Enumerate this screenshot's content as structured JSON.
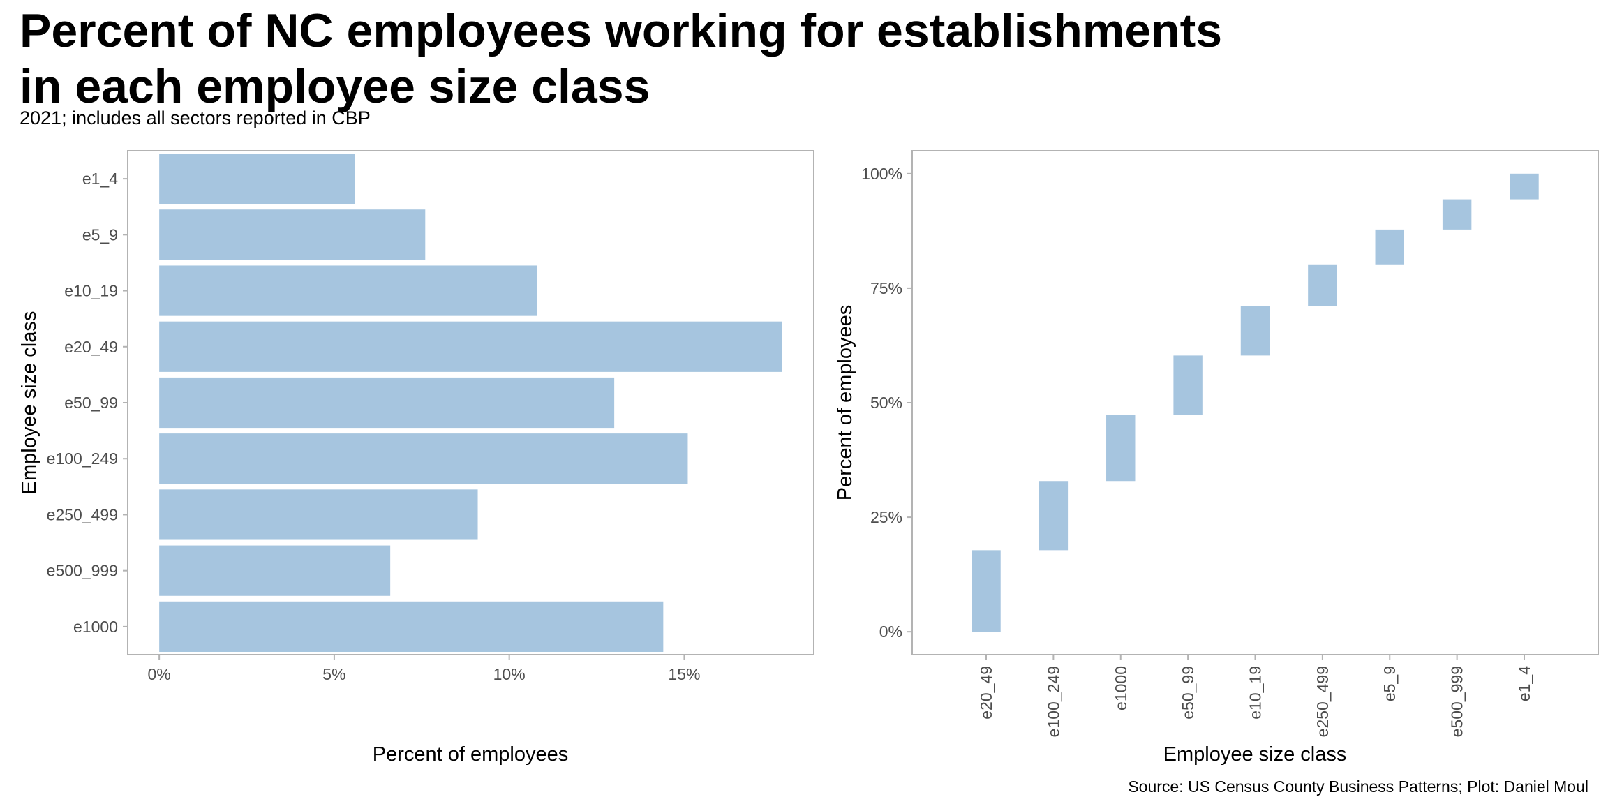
{
  "title_lines": [
    "Percent of NC employees working for establishments",
    "in each employee size class"
  ],
  "subtitle": "2021; includes all sectors reported in CBP",
  "caption": "Source: US Census County Business Patterns; Plot: Daniel Moul",
  "colors": {
    "bar": "#a6c5df",
    "panel_border": "#b3b3b3",
    "tick": "#4d4d4d"
  },
  "chart_data": [
    {
      "type": "bar",
      "orientation": "horizontal",
      "categories": [
        "e1_4",
        "e5_9",
        "e10_19",
        "e20_49",
        "e50_99",
        "e100_249",
        "e250_499",
        "e500_999",
        "e1000"
      ],
      "values": [
        5.6,
        7.6,
        10.8,
        17.8,
        13.0,
        15.1,
        9.1,
        6.6,
        14.4
      ],
      "xlabel": "Percent of employees",
      "ylabel": "Employee size class",
      "xlim": [
        -0.9,
        18.7
      ],
      "xticks": [
        0,
        5,
        10,
        15
      ],
      "xtick_labels": [
        "0%",
        "5%",
        "10%",
        "15%"
      ],
      "grid": false
    },
    {
      "type": "waterfall",
      "categories": [
        "e20_49",
        "e100_249",
        "e1000",
        "e50_99",
        "e10_19",
        "e250_499",
        "e5_9",
        "e500_999",
        "e1_4"
      ],
      "start": [
        0,
        17.8,
        32.9,
        47.3,
        60.3,
        71.1,
        80.2,
        87.8,
        94.4
      ],
      "end": [
        17.8,
        32.9,
        47.3,
        60.3,
        71.1,
        80.2,
        87.8,
        94.4,
        100
      ],
      "xlabel": "Employee size class",
      "ylabel": "Percent of employees",
      "ylim": [
        -5,
        105
      ],
      "yticks": [
        0,
        25,
        50,
        75,
        100
      ],
      "ytick_labels": [
        "0%",
        "25%",
        "50%",
        "75%",
        "100%"
      ],
      "grid": false
    }
  ]
}
